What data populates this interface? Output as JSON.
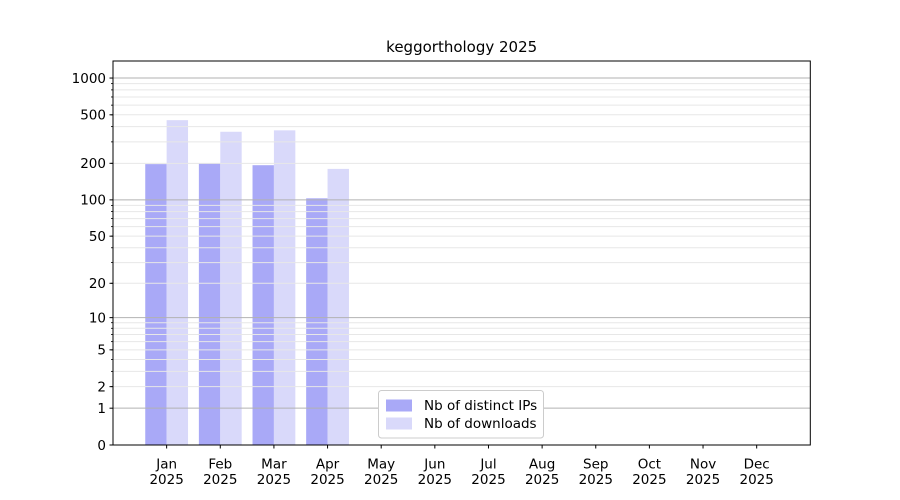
{
  "chart_data": {
    "type": "bar",
    "title": "keggorthology 2025",
    "categories": [
      "Jan",
      "Feb",
      "Mar",
      "Apr",
      "May",
      "Jun",
      "Jul",
      "Aug",
      "Sep",
      "Oct",
      "Nov",
      "Dec"
    ],
    "category_year": "2025",
    "series": [
      {
        "name": "Nb of distinct IPs",
        "color": "#a9a9f7",
        "values": [
          197,
          199,
          193,
          103,
          null,
          null,
          null,
          null,
          null,
          null,
          null,
          null
        ]
      },
      {
        "name": "Nb of downloads",
        "color": "#d9d9fa",
        "values": [
          452,
          363,
          373,
          180,
          null,
          null,
          null,
          null,
          null,
          null,
          null,
          null
        ]
      }
    ],
    "yscale": "log1p",
    "ytick_labels": [
      0,
      1,
      2,
      5,
      10,
      20,
      50,
      100,
      200,
      500,
      1000
    ],
    "ylim": [
      0,
      1380
    ],
    "xlabel": "",
    "ylabel": "",
    "grid": "horizontal-major-and-minor",
    "legend": {
      "position": "lower-center",
      "entries": [
        "Nb of distinct IPs",
        "Nb of downloads"
      ]
    }
  },
  "colors": {
    "background": "#ffffff",
    "axis": "#000000",
    "grid_major": "#b2b2b2",
    "grid_minor": "#e7e7e7",
    "legend_border": "#cccccc"
  }
}
